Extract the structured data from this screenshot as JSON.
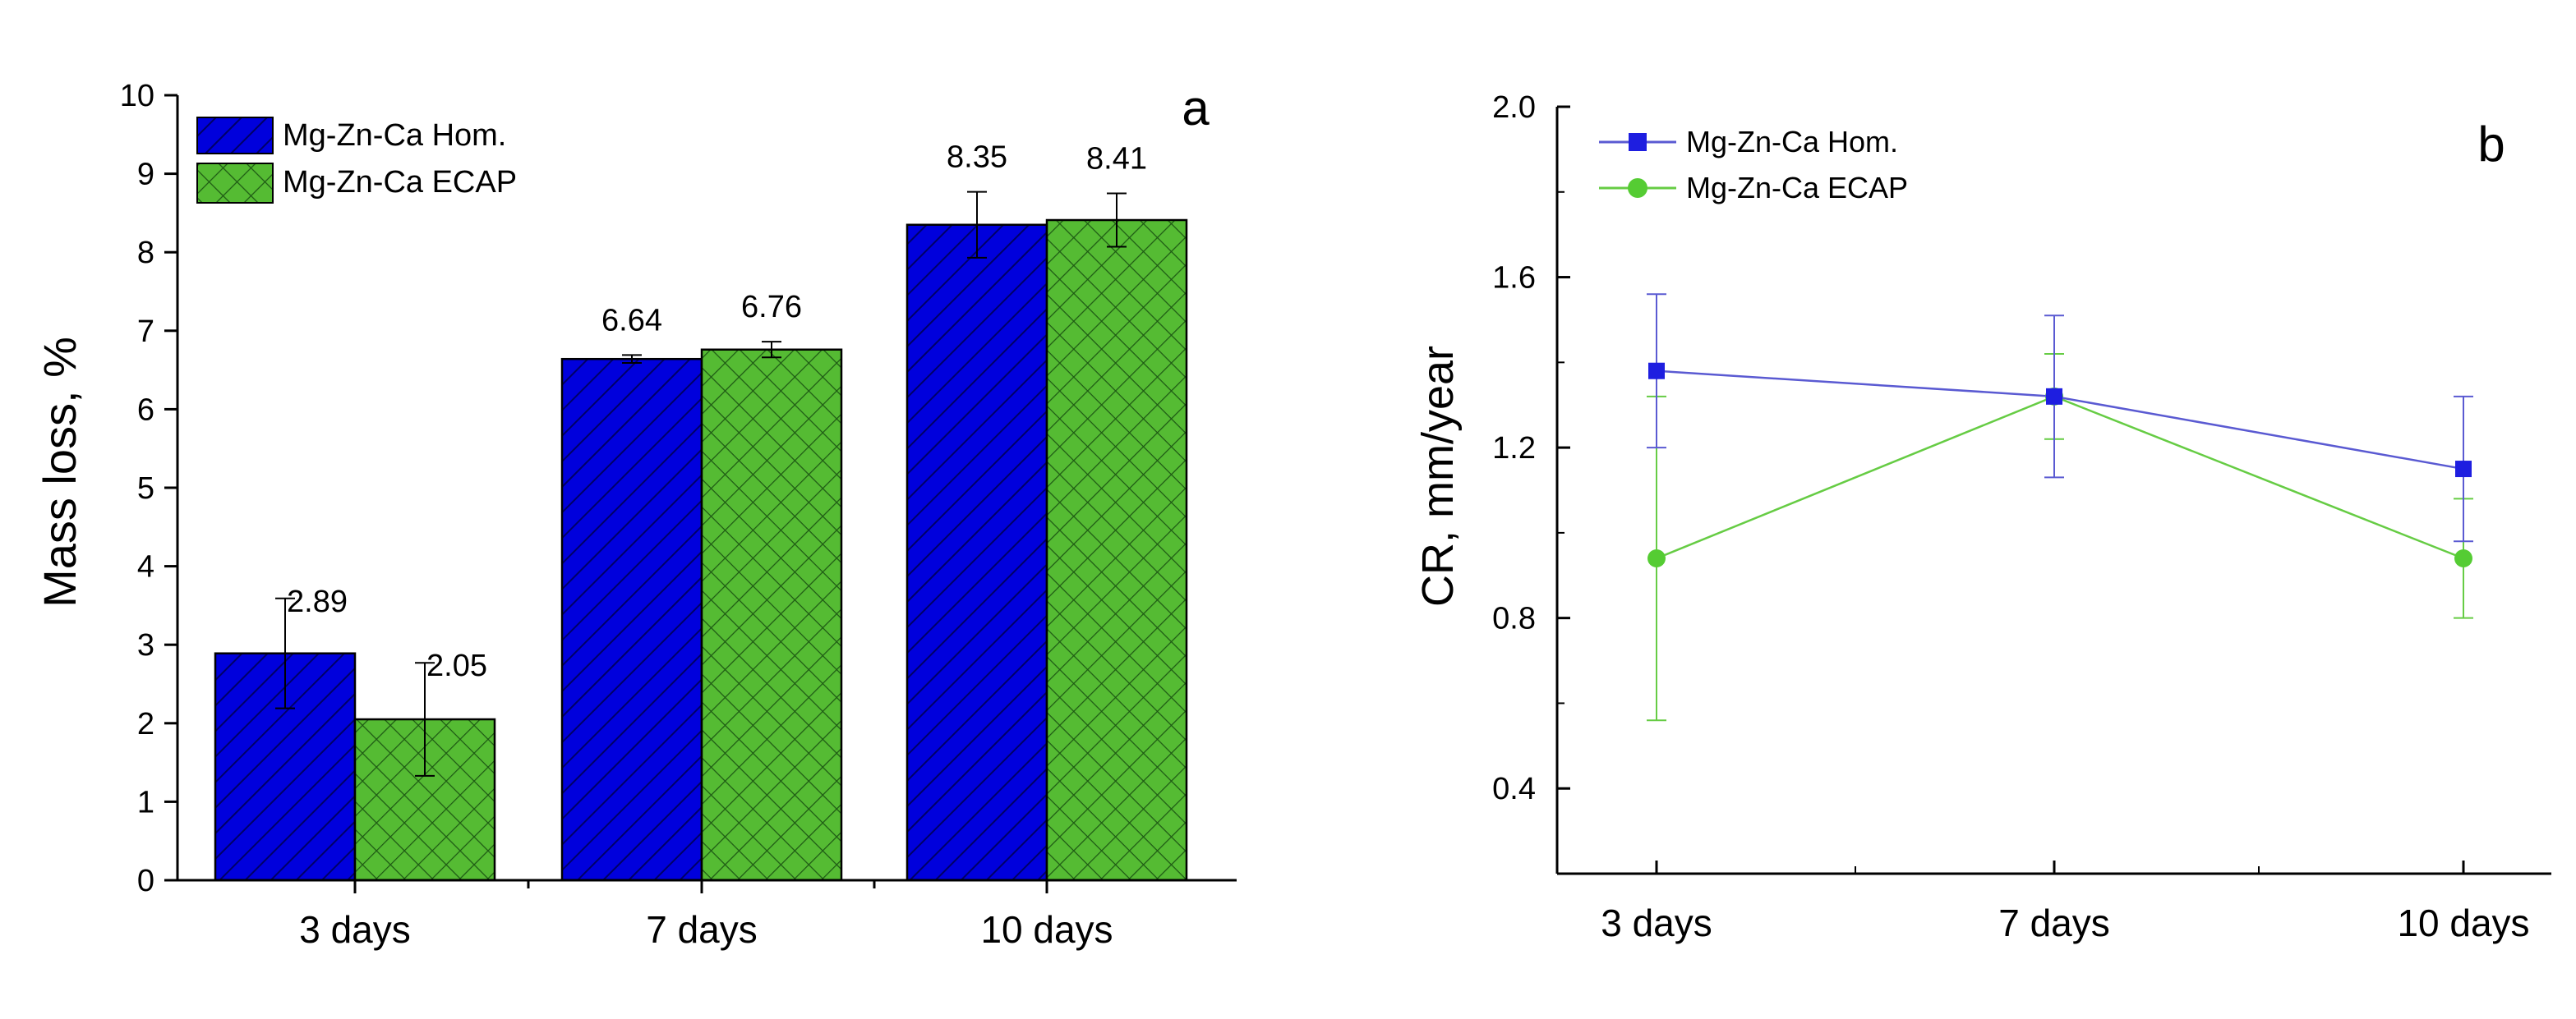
{
  "colors": {
    "hom": "#0000dc",
    "hom_hatch": "#000066",
    "ecap": "#55bb33",
    "ecap_hatch": "#1e5a14",
    "hom_line": "#5a5ad2",
    "hom_marker": "#1e1ee0",
    "ecap_line": "#66cc44",
    "ecap_marker": "#55cc33",
    "axis": "#000000"
  },
  "chart_data": [
    {
      "type": "bar",
      "panel_label": "a",
      "ylabel": "Mass loss, %",
      "xlabel": "",
      "ylim": [
        0,
        10
      ],
      "yticks": [
        "0",
        "1",
        "2",
        "3",
        "4",
        "5",
        "6",
        "7",
        "8",
        "9",
        "10"
      ],
      "categories": [
        "3 days",
        "7 days",
        "10 days"
      ],
      "legend_position": "top-left",
      "series": [
        {
          "name": "Mg-Zn-Ca Hom.",
          "values": [
            2.89,
            6.64,
            8.35
          ],
          "labels": [
            "2.89",
            "6.64",
            "8.35"
          ],
          "errors": [
            0.7,
            0.05,
            0.42
          ]
        },
        {
          "name": "Mg-Zn-Ca ECAP",
          "values": [
            2.05,
            6.76,
            8.41
          ],
          "labels": [
            "2.05",
            "6.76",
            "8.41"
          ],
          "errors": [
            0.72,
            0.1,
            0.34
          ]
        }
      ]
    },
    {
      "type": "line",
      "panel_label": "b",
      "ylabel": "CR, mm/year",
      "xlabel": "",
      "ylim": [
        0.2,
        2.0
      ],
      "yticks": [
        "0.4",
        "0.8",
        "1.2",
        "1.6",
        "2.0"
      ],
      "categories": [
        "3 days",
        "7 days",
        "10 days"
      ],
      "legend_position": "top-left",
      "series": [
        {
          "name": "Mg-Zn-Ca Hom.",
          "values": [
            1.38,
            1.32,
            1.15
          ],
          "errors": [
            0.18,
            0.19,
            0.17
          ]
        },
        {
          "name": "Mg-Zn-Ca ECAP",
          "values": [
            0.94,
            1.32,
            0.94
          ],
          "errors": [
            0.38,
            0.1,
            0.14
          ]
        }
      ]
    }
  ]
}
